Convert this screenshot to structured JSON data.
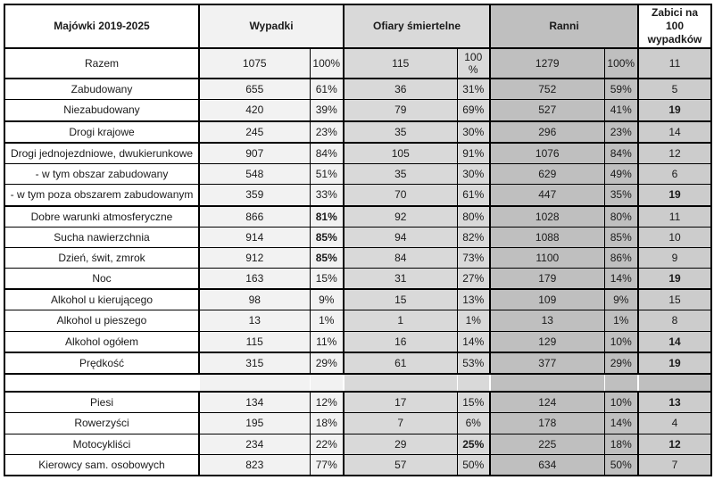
{
  "colors": {
    "border": "#000000",
    "wypadki_fill": "#f2f2f2",
    "ofiary_fill": "#d9d9d9",
    "ranni_fill": "#bfbfbf",
    "zabici_fill": "#cccccc"
  },
  "table": {
    "headers": {
      "corner": "Majówki 2019-2025",
      "wypadki": "Wypadki",
      "ofiary": "Ofiary śmiertelne",
      "ranni": "Ranni",
      "zabici": "Zabici na\n100\nwypadków"
    },
    "rows": [
      {
        "label": "Razem",
        "cells": [
          "1075",
          "100%",
          "115",
          "100\n%",
          "1279",
          "100%",
          "11"
        ],
        "bold": [],
        "sep": true,
        "tall": true
      },
      {
        "label": "Zabudowany",
        "cells": [
          "655",
          "61%",
          "36",
          "31%",
          "752",
          "59%",
          "5"
        ],
        "bold": []
      },
      {
        "label": "Niezabudowany",
        "cells": [
          "420",
          "39%",
          "79",
          "69%",
          "527",
          "41%",
          "19"
        ],
        "bold": [
          6
        ],
        "sep": true
      },
      {
        "label": "Drogi krajowe",
        "cells": [
          "245",
          "23%",
          "35",
          "30%",
          "296",
          "23%",
          "14"
        ],
        "bold": [],
        "sep": true
      },
      {
        "label": "Drogi jednojezdniowe, dwukierunkowe",
        "cells": [
          "907",
          "84%",
          "105",
          "91%",
          "1076",
          "84%",
          "12"
        ],
        "bold": []
      },
      {
        "label": "- w tym obszar zabudowany",
        "cells": [
          "548",
          "51%",
          "35",
          "30%",
          "629",
          "49%",
          "6"
        ],
        "bold": []
      },
      {
        "label": "- w tym poza obszarem zabudowanym",
        "cells": [
          "359",
          "33%",
          "70",
          "61%",
          "447",
          "35%",
          "19"
        ],
        "bold": [
          6
        ],
        "sep": true
      },
      {
        "label": "Dobre warunki atmosferyczne",
        "cells": [
          "866",
          "81%",
          "92",
          "80%",
          "1028",
          "80%",
          "11"
        ],
        "bold": [
          1
        ]
      },
      {
        "label": "Sucha nawierzchnia",
        "cells": [
          "914",
          "85%",
          "94",
          "82%",
          "1088",
          "85%",
          "10"
        ],
        "bold": [
          1
        ]
      },
      {
        "label": "Dzień, świt, zmrok",
        "cells": [
          "912",
          "85%",
          "84",
          "73%",
          "1100",
          "86%",
          "9"
        ],
        "bold": [
          1
        ]
      },
      {
        "label": "Noc",
        "cells": [
          "163",
          "15%",
          "31",
          "27%",
          "179",
          "14%",
          "19"
        ],
        "bold": [
          6
        ],
        "sep": true
      },
      {
        "label": "Alkohol u kierującego",
        "cells": [
          "98",
          "9%",
          "15",
          "13%",
          "109",
          "9%",
          "15"
        ],
        "bold": []
      },
      {
        "label": "Alkohol u pieszego",
        "cells": [
          "13",
          "1%",
          "1",
          "1%",
          "13",
          "1%",
          "8"
        ],
        "bold": []
      },
      {
        "label": "Alkohol ogółem",
        "cells": [
          "115",
          "11%",
          "16",
          "14%",
          "129",
          "10%",
          "14"
        ],
        "bold": [
          6
        ],
        "sep": true
      },
      {
        "label": "Prędkość",
        "cells": [
          "315",
          "29%",
          "61",
          "53%",
          "377",
          "29%",
          "19"
        ],
        "bold": [
          6
        ],
        "sep": true
      },
      {
        "label": "",
        "cells": [
          "",
          "",
          "",
          "",
          "",
          "",
          ""
        ],
        "bold": [],
        "empty": true,
        "sep": true
      },
      {
        "label": "Piesi",
        "cells": [
          "134",
          "12%",
          "17",
          "15%",
          "124",
          "10%",
          "13"
        ],
        "bold": [
          6
        ]
      },
      {
        "label": "Rowerzyści",
        "cells": [
          "195",
          "18%",
          "7",
          "6%",
          "178",
          "14%",
          "4"
        ],
        "bold": []
      },
      {
        "label": "Motocykliści",
        "cells": [
          "234",
          "22%",
          "29",
          "25%",
          "225",
          "18%",
          "12"
        ],
        "bold": [
          3,
          6
        ]
      },
      {
        "label": "Kierowcy sam. osobowych",
        "cells": [
          "823",
          "77%",
          "57",
          "50%",
          "634",
          "50%",
          "7"
        ],
        "bold": []
      }
    ]
  }
}
